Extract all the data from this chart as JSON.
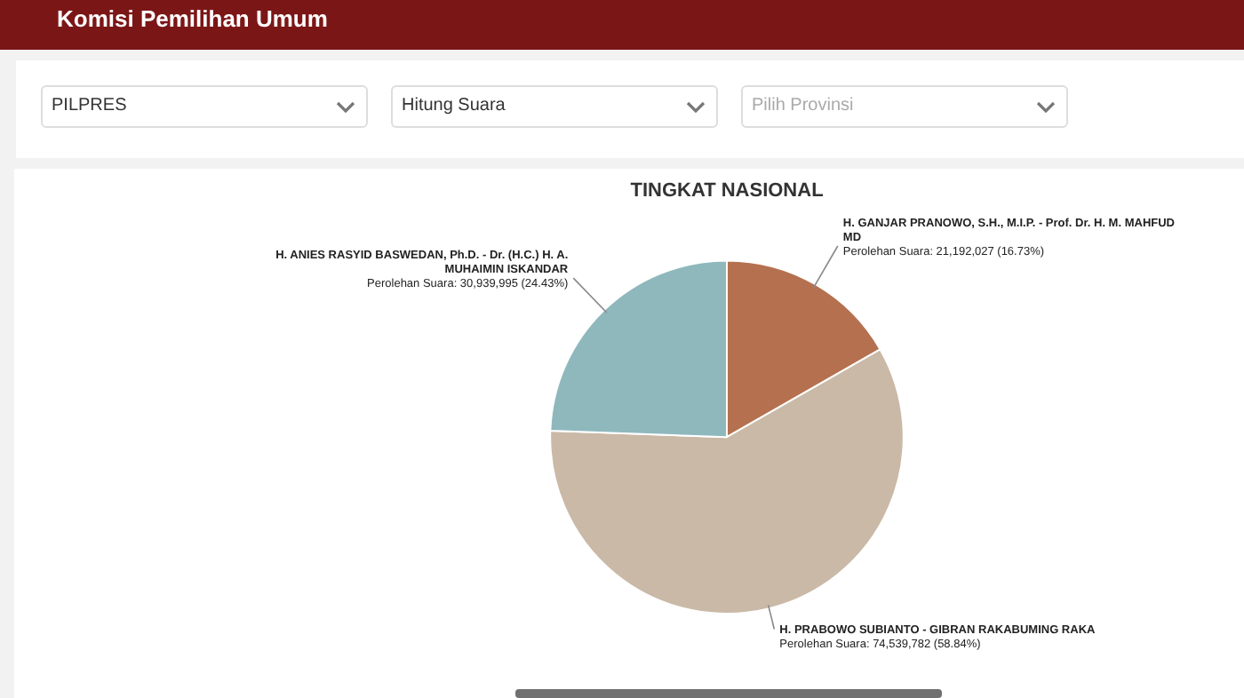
{
  "chart_data": {
    "type": "pie",
    "title": "TINGKAT NASIONAL",
    "categories": [
      "H. GANJAR PRANOWO, S.H., M.I.P. - Prof. Dr. H. M. MAHFUD MD",
      "H. PRABOWO SUBIANTO - GIBRAN RAKABUMING RAKA",
      "H. ANIES RASYID BASWEDAN, Ph.D. - Dr. (H.C.) H. A. MUHAIMIN ISKANDAR"
    ],
    "values": [
      21192027,
      74539782,
      30939995
    ],
    "colors": [
      "#b5714f",
      "#c9b9a6",
      "#8fb8bd"
    ],
    "value_labels": [
      "Perolehan Suara: 21,192,027 (16.73%)",
      "Perolehan Suara: 74,539,782 (58.84%)",
      "Perolehan Suara: 30,939,995 (24.43%)"
    ],
    "annotations": [
      "Komisi Pemilihan Umum",
      "PILPRES",
      "Hitung Suara",
      "Pilih Provinsi"
    ],
    "legend": false
  }
}
